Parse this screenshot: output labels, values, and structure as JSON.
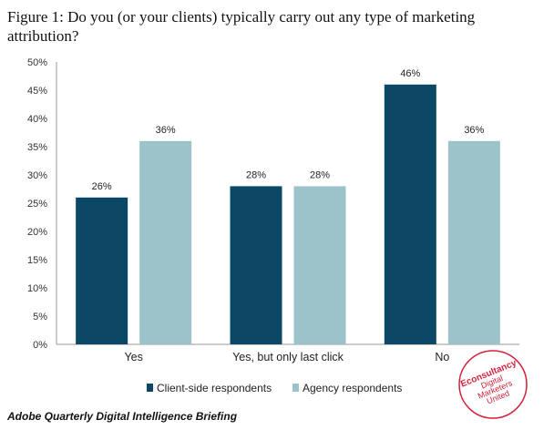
{
  "figure_title": "Figure 1: Do you (or your clients) typically carry out any type of marketing attribution?",
  "source": "Adobe Quarterly Digital Intelligence Briefing",
  "logo_text": [
    "Econsultancy",
    "Digital",
    "Marketers",
    "United"
  ],
  "colors": {
    "client": "#0b4866",
    "agency": "#9dc3ca",
    "axis": "#999999",
    "logo": "#d2213b"
  },
  "chart_data": {
    "type": "bar",
    "categories": [
      "Yes",
      "Yes, but only last click",
      "No"
    ],
    "series": [
      {
        "name": "Client-side respondents",
        "values": [
          26,
          28,
          46
        ],
        "labels": [
          "26%",
          "28%",
          "46%"
        ]
      },
      {
        "name": "Agency respondents",
        "values": [
          36,
          28,
          36
        ],
        "labels": [
          "36%",
          "28%",
          "36%"
        ]
      }
    ],
    "ylim": [
      0,
      50
    ],
    "yticks": [
      "0%",
      "5%",
      "10%",
      "15%",
      "20%",
      "25%",
      "30%",
      "35%",
      "40%",
      "45%",
      "50%"
    ],
    "grid": false,
    "legend": "bottom"
  }
}
